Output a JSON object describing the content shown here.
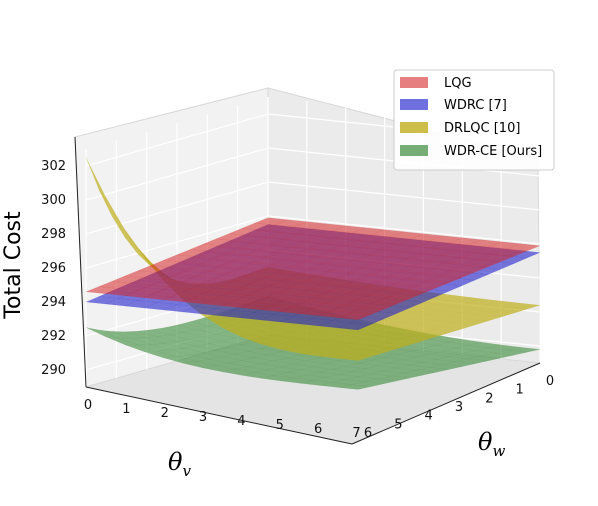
{
  "chart_data": {
    "type": "surface3d",
    "zlabel": "Total Cost",
    "xlabel": {
      "symbol": "θ",
      "sub": "v"
    },
    "ylabel": {
      "symbol": "θ",
      "sub": "w"
    },
    "x_ticks": [
      "0",
      "1",
      "2",
      "3",
      "4",
      "5",
      "6",
      "7"
    ],
    "y_ticks": [
      "0",
      "1",
      "2",
      "3",
      "4",
      "5",
      "6"
    ],
    "z_ticks": [
      "290",
      "292",
      "294",
      "296",
      "298",
      "300",
      "302"
    ],
    "xlim": [
      0,
      7
    ],
    "ylim": [
      0,
      6
    ],
    "zlim": [
      289,
      303
    ],
    "legend_position": "top-right",
    "series": [
      {
        "name": "LQG",
        "color": "#d62728",
        "surface": "plane",
        "corners": {
          "x0y0": 295.9,
          "x7y0": 295.9,
          "x0y6": 294.6,
          "x7y6": 294.6
        }
      },
      {
        "name": "WDRC [7]",
        "color": "#2222cc",
        "surface": "plane",
        "corners": {
          "x0y0": 295.5,
          "x7y0": 295.5,
          "x0y6": 294.0,
          "x7y6": 294.0
        }
      },
      {
        "name": "DRLQC [10]",
        "color": "#bfae1a",
        "surface": "bowl",
        "corners": {
          "x0y0": 293.0,
          "x7y0": 292.4,
          "x0y6": 302.5,
          "x7y6": 292.2
        }
      },
      {
        "name": "WDR-CE [Ours]",
        "color": "#3a8a3a",
        "surface": "bowl",
        "corners": {
          "x0y0": 291.3,
          "x7y0": 289.8,
          "x0y6": 292.5,
          "x7y6": 290.5
        }
      }
    ]
  }
}
